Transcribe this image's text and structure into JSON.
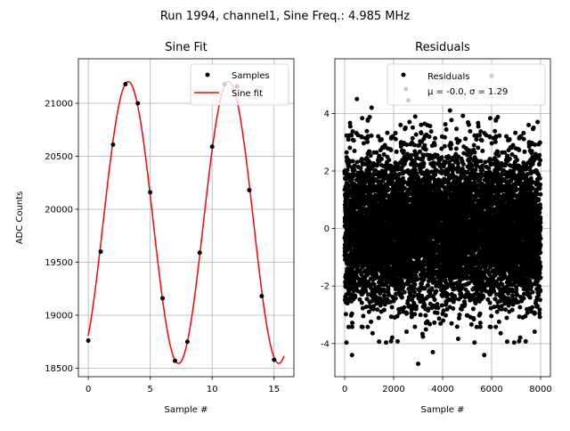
{
  "suptitle": "Run 1994, channel1, Sine Freq.: 4.985 MHz",
  "chart_data": [
    {
      "type": "line",
      "title": "Sine Fit",
      "xlabel": "Sample #",
      "ylabel": "ADC Counts",
      "xlim": [
        -0.8,
        16.6
      ],
      "ylim": [
        18420,
        21420
      ],
      "xticks": [
        0,
        5,
        10,
        15
      ],
      "yticks": [
        18500,
        19000,
        19500,
        20000,
        20500,
        21000
      ],
      "grid": true,
      "legend_position": "top-right",
      "samples": {
        "name": "Samples",
        "color": "#000000",
        "x": [
          0,
          1,
          2,
          3,
          4,
          5,
          6,
          7,
          8,
          9,
          10,
          11,
          12,
          13,
          14,
          15
        ],
        "y": [
          18760,
          19600,
          20610,
          21180,
          21000,
          20160,
          19160,
          18570,
          18750,
          19590,
          20590,
          21180,
          21160,
          20180,
          19180,
          18580
        ]
      },
      "fit": {
        "name": "Sine fit",
        "color": "#ff0000",
        "offset": 19875,
        "amplitude": 1330,
        "period": 8.1,
        "phase_sample": 5.25,
        "x_range": [
          0,
          15.8
        ]
      }
    },
    {
      "type": "scatter",
      "title": "Residuals",
      "xlabel": "Sample #",
      "ylabel": "",
      "xlim": [
        -400,
        8400
      ],
      "ylim": [
        -5.15,
        5.9
      ],
      "xticks": [
        0,
        2000,
        4000,
        6000,
        8000
      ],
      "yticks": [
        -4,
        -2,
        0,
        2,
        4
      ],
      "grid": true,
      "legend_position": "top-right",
      "series_name": "Residuals",
      "stats_label": "μ = -0.0, σ = 1.29",
      "color": "#000000",
      "n_points": 8000,
      "mean": 0.0,
      "sigma": 1.29,
      "outliers": [
        {
          "x": 6000,
          "y": 5.3
        },
        {
          "x": 2500,
          "y": 4.85
        },
        {
          "x": 2600,
          "y": 4.45
        },
        {
          "x": 500,
          "y": 4.5
        },
        {
          "x": 3000,
          "y": -4.7
        },
        {
          "x": 300,
          "y": -4.4
        },
        {
          "x": 5700,
          "y": -4.4
        },
        {
          "x": 3600,
          "y": -4.3
        },
        {
          "x": 1100,
          "y": 4.2
        },
        {
          "x": 4300,
          "y": 4.1
        }
      ]
    }
  ]
}
